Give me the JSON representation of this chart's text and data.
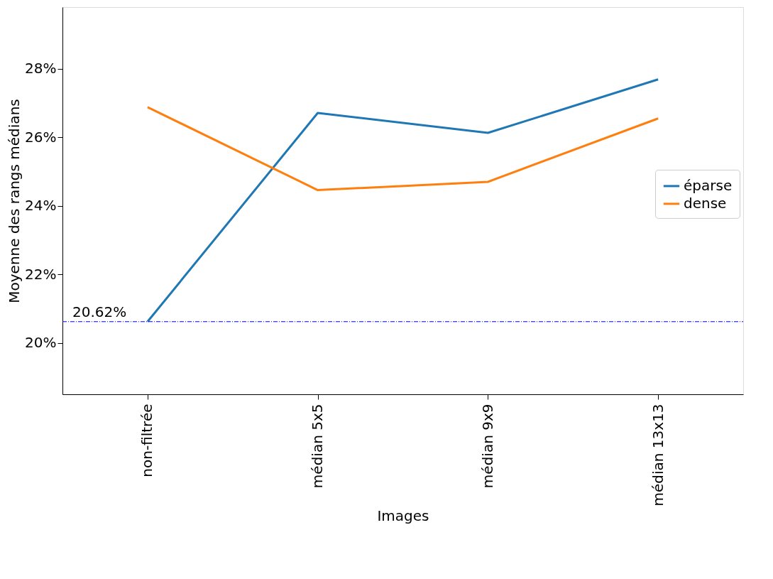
{
  "chart_data": {
    "type": "line",
    "xlabel": "Images",
    "ylabel": "Moyenne des rangs médians",
    "categories": [
      "non-filtrée",
      "médian 5x5",
      "médian 9x9",
      "médian 13x13"
    ],
    "series": [
      {
        "name": "éparse",
        "color": "#1f77b4",
        "values": [
          20.62,
          26.71,
          26.13,
          27.69
        ]
      },
      {
        "name": "dense",
        "color": "#ff7f0e",
        "values": [
          26.88,
          24.46,
          24.7,
          26.55
        ]
      }
    ],
    "ylim": [
      18.5,
      29.8
    ],
    "yticks": [
      {
        "value": 20,
        "label": "20%"
      },
      {
        "value": 22,
        "label": "22%"
      },
      {
        "value": 24,
        "label": "24%"
      },
      {
        "value": 26,
        "label": "26%"
      },
      {
        "value": 28,
        "label": "28%"
      }
    ],
    "ref_lines": [
      {
        "axis": "y",
        "value": 20.62,
        "label": "20.62%",
        "color": "#0000ff",
        "line_style": "dashdot"
      }
    ],
    "legend": "right",
    "grid": false,
    "marker": "none",
    "line_style": "solid"
  }
}
